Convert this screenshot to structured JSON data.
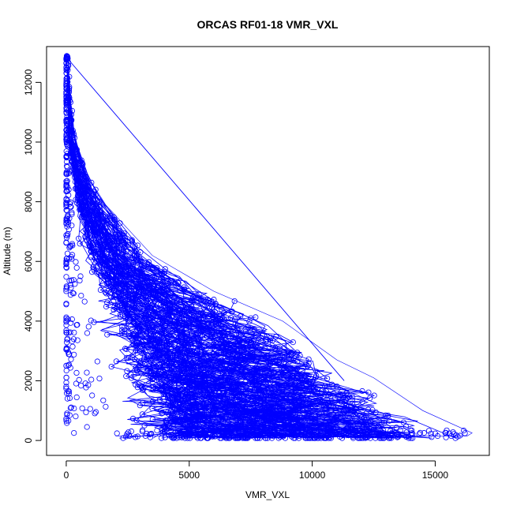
{
  "chart_data": {
    "type": "scatter",
    "title": "ORCAS RF01-18 VMR_VXL",
    "xlabel": "VMR_VXL",
    "ylabel": "Altitude (m)",
    "xlim": [
      -800,
      17200
    ],
    "ylim": [
      -500,
      13200
    ],
    "x_ticks": [
      0,
      5000,
      10000,
      15000
    ],
    "y_ticks": [
      0,
      2000,
      4000,
      6000,
      8000,
      10000,
      12000
    ],
    "x_tick_labels": [
      "0",
      "5000",
      "10000",
      "15000"
    ],
    "y_tick_labels": [
      "0",
      "2000",
      "4000",
      "6000",
      "8000",
      "10000",
      "12000"
    ],
    "grid": false,
    "legend": "none",
    "marker": "open-circle",
    "connected": true,
    "series_color": "#0000ff",
    "envelope_description_points": [
      {
        "x": 0,
        "y": 12900
      },
      {
        "x": 100,
        "y": 11000
      },
      {
        "x": 300,
        "y": 9600
      },
      {
        "x": 1600,
        "y": 7900
      },
      {
        "x": 3500,
        "y": 6200
      },
      {
        "x": 6000,
        "y": 5000
      },
      {
        "x": 8800,
        "y": 4000
      },
      {
        "x": 11000,
        "y": 2700
      },
      {
        "x": 12500,
        "y": 2100
      },
      {
        "x": 14500,
        "y": 1000
      },
      {
        "x": 16500,
        "y": 250
      },
      {
        "x": 16300,
        "y": 150
      },
      {
        "x": 2000,
        "y": 150
      }
    ],
    "annotations": [
      {
        "label": "straight trace from top-left to lower right",
        "x1": 0,
        "y1": 12850,
        "x2": 11300,
        "y2": 2000
      }
    ]
  }
}
